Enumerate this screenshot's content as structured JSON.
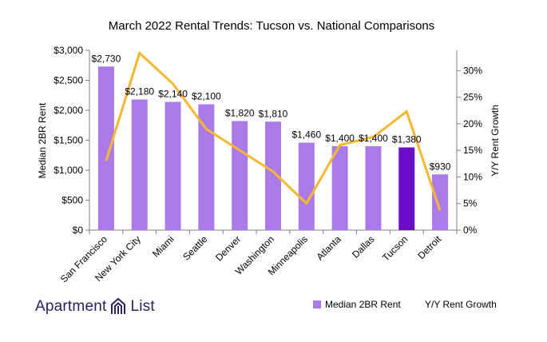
{
  "chart_data": {
    "type": "bar",
    "title": "March 2022 Rental Trends: Tucson vs. National Comparisons",
    "categories": [
      "San Francisco",
      "New York City",
      "Miami",
      "Seattle",
      "Denver",
      "Washington",
      "Minneapolis",
      "Atlanta",
      "Dallas",
      "Tucson",
      "Detroit"
    ],
    "series": [
      {
        "name": "Median 2BR Rent",
        "type": "bar",
        "axis": "left",
        "values": [
          2730,
          2180,
          2140,
          2100,
          1820,
          1810,
          1460,
          1400,
          1400,
          1380,
          930
        ],
        "data_labels": [
          "$2,730",
          "$2,180",
          "$2,140",
          "$2,100",
          "$1,820",
          "$1,810",
          "$1,460",
          "$1,400",
          "$1,400",
          "$1,380",
          "$930"
        ]
      },
      {
        "name": "Y/Y Rent Growth",
        "type": "line",
        "axis": "right",
        "values": [
          13,
          33.3,
          27.5,
          19,
          15,
          11,
          5,
          16,
          17.5,
          22.3,
          3.7
        ]
      }
    ],
    "highlight_category": "Tucson",
    "y_left": {
      "label": "Median 2BR Rent",
      "ylim": [
        0,
        3000
      ],
      "ticks": [
        0,
        500,
        1000,
        1500,
        2000,
        2500,
        3000
      ],
      "tick_labels": [
        "$0",
        "$500",
        "$1,000",
        "$1,500",
        "$2,000",
        "$2,500",
        "$3,000"
      ]
    },
    "y_right": {
      "label": "Y/Y Rent Growth",
      "ylim": [
        0,
        33.8
      ],
      "ticks": [
        0,
        5,
        10,
        15,
        20,
        25,
        30
      ],
      "tick_labels": [
        "0%",
        "5%",
        "10%",
        "15%",
        "20%",
        "25%",
        "30%"
      ]
    },
    "grid": false,
    "legend_position": "bottom-right",
    "colors": {
      "bar": "#a97ae8",
      "bar_highlight": "#6a0dc8",
      "line": "#f5b82e",
      "axis": "#7f7f7f",
      "text": "#000000",
      "logo": "#2b2160"
    }
  },
  "branding": {
    "logo_left": "Apartment",
    "logo_right": "List"
  }
}
